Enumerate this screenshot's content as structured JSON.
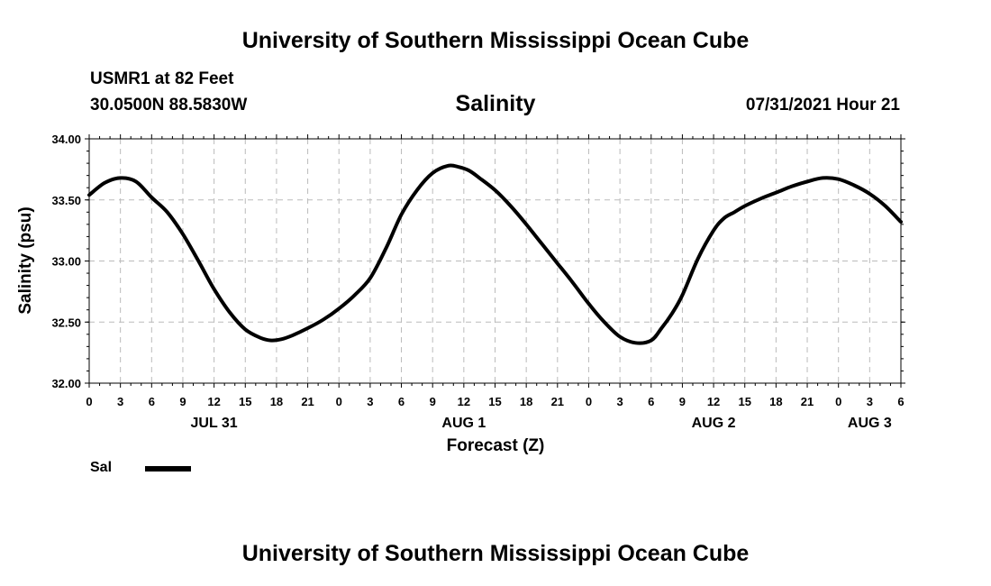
{
  "header": {
    "title": "University of Southern Mississippi Ocean Cube",
    "station": "USMR1 at 82 Feet",
    "coords": "30.0500N  88.5830W",
    "datetime": "07/31/2021 Hour 21"
  },
  "footer": {
    "title": "University of Southern Mississippi Ocean Cube"
  },
  "chart_data": {
    "type": "line",
    "title": "Salinity",
    "xlabel": "Forecast (Z)",
    "ylabel": "Salinity (psu)",
    "ylim": [
      32.0,
      34.0
    ],
    "yticks": [
      "32.00",
      "32.50",
      "33.00",
      "33.50",
      "34.00"
    ],
    "x_unit": "hours from 2021-07-31 00Z",
    "xlim": [
      0,
      78
    ],
    "xtick_labels": [
      "0",
      "3",
      "6",
      "9",
      "12",
      "15",
      "18",
      "21",
      "0",
      "3",
      "6",
      "9",
      "12",
      "15",
      "18",
      "21",
      "0",
      "3",
      "6",
      "9",
      "12",
      "15",
      "18",
      "21",
      "0",
      "3",
      "6"
    ],
    "day_labels": [
      {
        "label": "JUL 31",
        "hour": 12
      },
      {
        "label": "AUG 1",
        "hour": 36
      },
      {
        "label": "AUG 2",
        "hour": 60
      },
      {
        "label": "AUG 3",
        "hour": 75
      }
    ],
    "grid": true,
    "series": [
      {
        "name": "Sal",
        "color": "#000000",
        "x": [
          0,
          1.5,
          3,
          4.5,
          6,
          7.5,
          9,
          10.5,
          12,
          13.5,
          15,
          16.5,
          17.5,
          18.5,
          19.5,
          21,
          22.5,
          24,
          25.5,
          27,
          28.5,
          30,
          31.5,
          33,
          34.5,
          35.5,
          36.5,
          37.5,
          39,
          40.5,
          42,
          43.5,
          45,
          46.5,
          48,
          49.5,
          51,
          52.5,
          54,
          55,
          56,
          57,
          58.5,
          60,
          61,
          62,
          63,
          64.5,
          66,
          67.5,
          69,
          70.5,
          72,
          73.5,
          75,
          76.5,
          78
        ],
        "y": [
          33.54,
          33.64,
          33.68,
          33.65,
          33.52,
          33.4,
          33.22,
          33.0,
          32.77,
          32.58,
          32.44,
          32.37,
          32.35,
          32.36,
          32.39,
          32.45,
          32.52,
          32.61,
          32.72,
          32.86,
          33.1,
          33.38,
          33.58,
          33.72,
          33.78,
          33.77,
          33.74,
          33.68,
          33.58,
          33.45,
          33.3,
          33.14,
          32.98,
          32.82,
          32.65,
          32.5,
          32.38,
          32.33,
          32.35,
          32.45,
          32.57,
          32.72,
          33.02,
          33.25,
          33.35,
          33.4,
          33.45,
          33.51,
          33.56,
          33.61,
          33.65,
          33.68,
          33.67,
          33.62,
          33.55,
          33.45,
          33.32
        ]
      }
    ],
    "legend": {
      "position": "bottom-left",
      "label": "Sal"
    }
  }
}
